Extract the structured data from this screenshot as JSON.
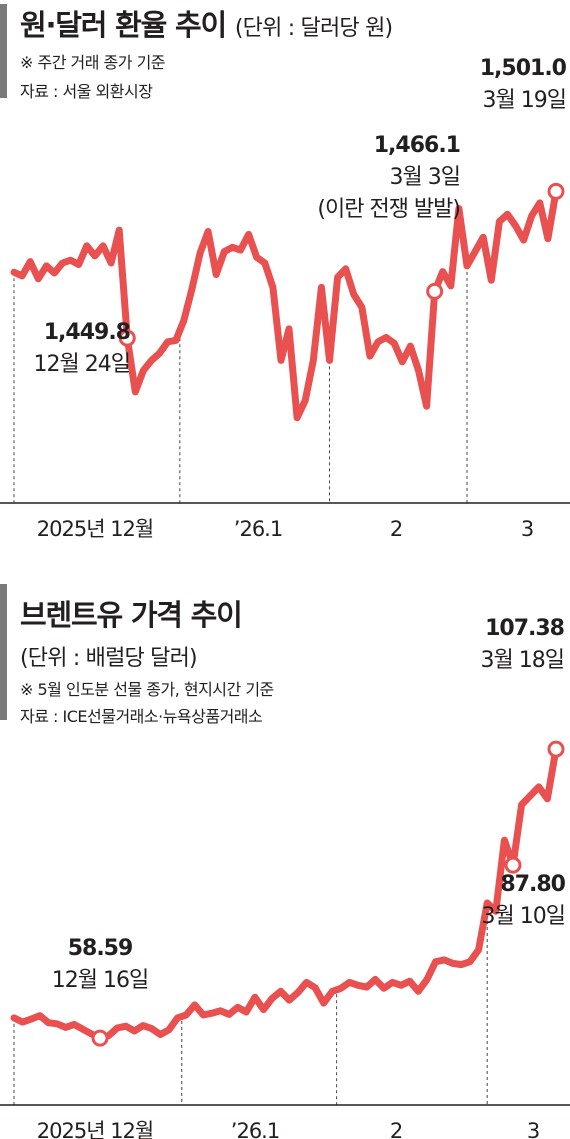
{
  "fx": {
    "title": "원·달러 환율 추이",
    "unit": "(단위 : 달러당 원)",
    "note": "※ 주간 거래 종가 기준",
    "source": "자료 : 서울 외환시장",
    "chart_data": {
      "type": "line",
      "ylim": [
        1400,
        1520
      ],
      "x_ticks": [
        "2025년 12월",
        "’26.1",
        "2",
        "3"
      ],
      "series": [
        {
          "values": [
            1472.8,
            1471.5,
            1476.5,
            1470.5,
            1475.0,
            1472.5,
            1476.0,
            1477.0,
            1475.5,
            1482.0,
            1478.5,
            1482.0,
            1476.0,
            1487.5,
            1449.8,
            1431.0,
            1438.5,
            1442.0,
            1444.5,
            1448.5,
            1449.0,
            1456.0,
            1467.0,
            1479.5,
            1487.0,
            1472.0,
            1480.0,
            1481.5,
            1480.5,
            1486.0,
            1478.0,
            1476.0,
            1467.5,
            1442.0,
            1453.0,
            1422.0,
            1428.0,
            1442.0,
            1467.5,
            1442.0,
            1471.0,
            1474.0,
            1465.0,
            1460.5,
            1443.5,
            1448.5,
            1450.0,
            1448.0,
            1441.5,
            1447.0,
            1438.5,
            1426.0,
            1466.1,
            1473.0,
            1468.0,
            1495.0,
            1475.0,
            1480.0,
            1485.0,
            1470.0,
            1490.5,
            1493.0,
            1489.0,
            1484.0,
            1492.5,
            1497.0,
            1484.5,
            1501.0
          ]
        }
      ],
      "annotations": [
        {
          "index": 14,
          "value": "1,449.8",
          "date": "12월 24일"
        },
        {
          "index": 52,
          "value": "1,466.1",
          "date": "3월 3일",
          "note": "(이란 전쟁 발발)"
        },
        {
          "index": 67,
          "value": "1,501.0",
          "date": "3월 19일"
        }
      ]
    }
  },
  "brent": {
    "title": "브렌트유 가격 추이",
    "unit": "(단위 : 배럴당 달러)",
    "note": "※ 5월 인도분 선물 종가, 현지시간 기준",
    "source": "자료 : ICE선물거래소·뉴욕상품거래소",
    "chart_data": {
      "type": "line",
      "ylim": [
        50,
        115
      ],
      "x_ticks": [
        "2025년 12월",
        "’26.1",
        "2",
        "3"
      ],
      "series": [
        {
          "values": [
            62.0,
            61.3,
            61.8,
            62.4,
            61.2,
            61.0,
            60.4,
            60.9,
            60.1,
            59.3,
            58.59,
            59.0,
            60.3,
            60.6,
            59.8,
            60.7,
            60.2,
            59.2,
            60.0,
            62.0,
            62.5,
            64.2,
            62.5,
            62.8,
            63.2,
            62.6,
            63.8,
            63.0,
            65.5,
            63.4,
            65.3,
            66.5,
            65.0,
            66.3,
            68.0,
            67.1,
            64.5,
            66.5,
            67.0,
            68.0,
            67.5,
            67.2,
            68.5,
            67.0,
            68.0,
            67.5,
            68.2,
            66.5,
            68.5,
            71.5,
            71.8,
            71.2,
            71.0,
            71.5,
            73.5,
            81.4,
            80.0,
            92.0,
            87.8,
            98.0,
            99.5,
            101.0,
            99.0,
            107.38
          ]
        }
      ],
      "annotations": [
        {
          "index": 10,
          "value": "58.59",
          "date": "12월 16일"
        },
        {
          "index": 58,
          "value": "87.80",
          "date": "3월 10일"
        },
        {
          "index": 63,
          "value": "107.38",
          "date": "3월 18일"
        }
      ]
    }
  }
}
